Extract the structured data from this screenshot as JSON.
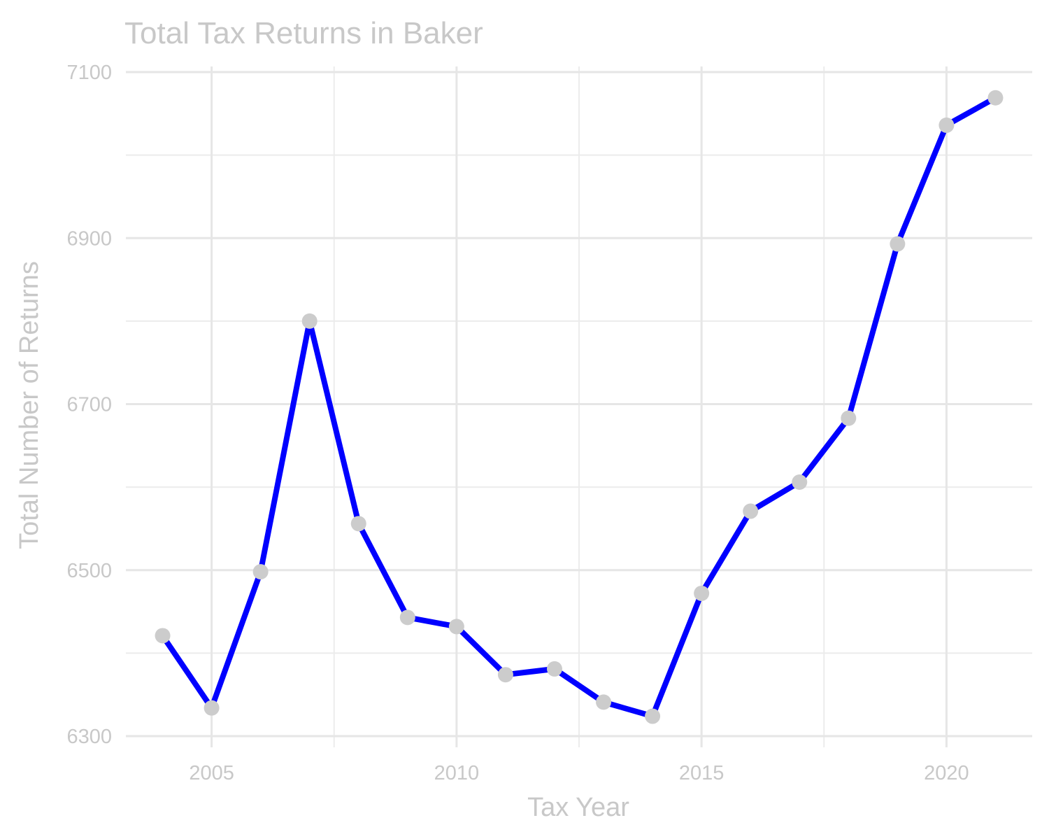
{
  "chart_data": {
    "type": "line",
    "title": "Total Tax Returns in Baker",
    "xlabel": "Tax Year",
    "ylabel": "Total Number of Returns",
    "xlim": [
      2003.25,
      2021.75
    ],
    "ylim": [
      6300,
      7100
    ],
    "x_ticks": [
      2005,
      2010,
      2015,
      2020
    ],
    "x_minor_ticks": [
      2007.5,
      2012.5,
      2017.5
    ],
    "y_ticks": [
      6300,
      6500,
      6700,
      6900,
      7100
    ],
    "y_minor_ticks": [
      6400,
      6600,
      6800,
      7000
    ],
    "grid": true,
    "legend": "none",
    "colors": {
      "line": "#0000ff",
      "points": "#cccccc",
      "text": "#c8c8c8",
      "grid": "#e6e6e6"
    },
    "series": [
      {
        "x": [
          2004,
          2005,
          2006,
          2007,
          2008,
          2009,
          2010,
          2011,
          2012,
          2013,
          2014,
          2015,
          2016,
          2017,
          2018,
          2019,
          2020,
          2021
        ],
        "values": [
          6421,
          6334,
          6498,
          6800,
          6556,
          6443,
          6432,
          6374,
          6381,
          6341,
          6324,
          6472,
          6571,
          6606,
          6683,
          6893,
          7036,
          7069
        ]
      }
    ]
  }
}
